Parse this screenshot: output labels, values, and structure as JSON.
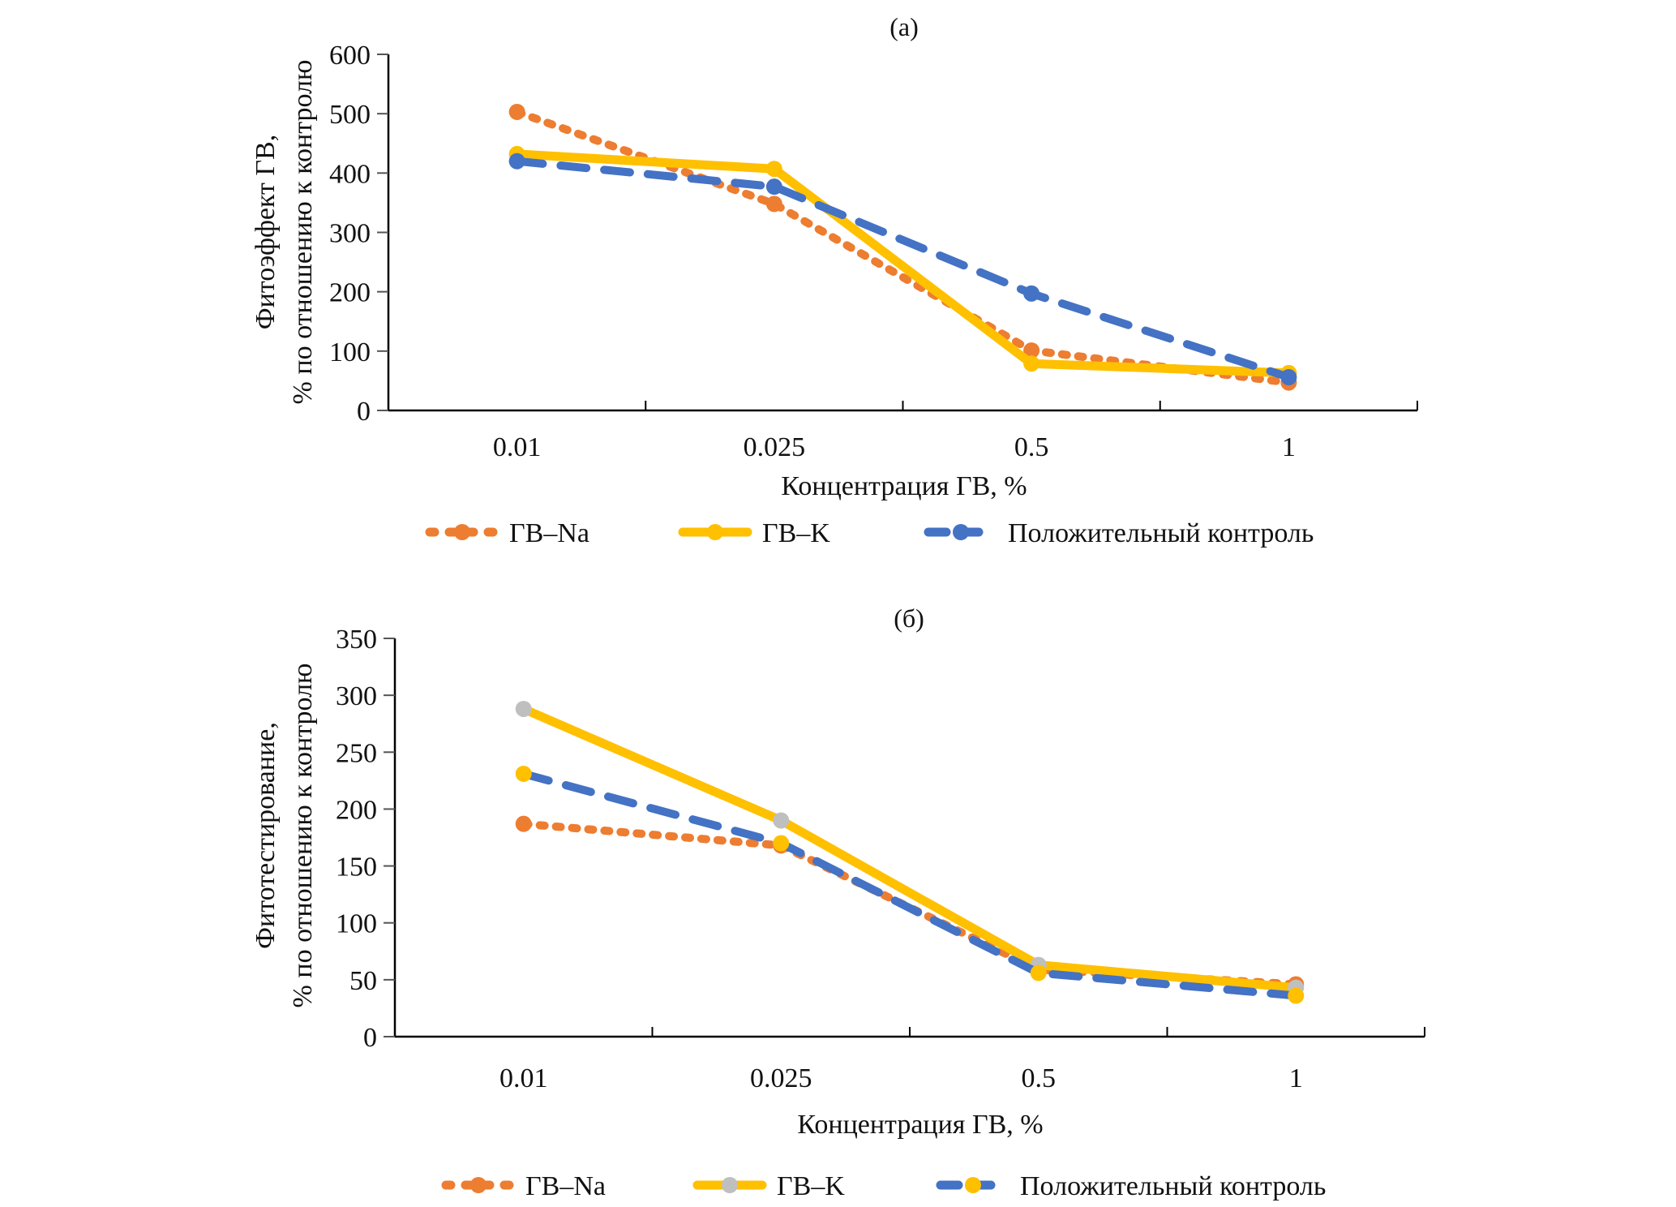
{
  "figure": {
    "colors": {
      "na": "#ED7D31",
      "k": "#FFC000",
      "control": "#4472C4",
      "gray_marker": "#BFBFBF",
      "axis": "#000000"
    }
  },
  "chart_data": [
    {
      "type": "line",
      "title": "(а)",
      "xlabel": "Концентрация ГВ, %",
      "ylabel_line1": "Фитоэффект ГВ,",
      "ylabel_line2": "% по отношению к контролю",
      "categories": [
        "0.01",
        "0.025",
        "0.5",
        "1"
      ],
      "ylim": [
        0,
        600
      ],
      "yticks": [
        0,
        100,
        200,
        300,
        400,
        500,
        600
      ],
      "grid": false,
      "legend_position": "bottom",
      "series": [
        {
          "name": "ГВ–Na",
          "style": "dotted",
          "color_key": "na",
          "marker_color_key": "na",
          "values": [
            503,
            348,
            101,
            47
          ]
        },
        {
          "name": "ГВ–K",
          "style": "solid",
          "color_key": "k",
          "marker_color_key": "k",
          "values": [
            432,
            407,
            79,
            63
          ]
        },
        {
          "name": "Положительный контроль",
          "style": "dashed",
          "color_key": "control",
          "marker_color_key": "control",
          "values": [
            420,
            377,
            197,
            56
          ]
        }
      ]
    },
    {
      "type": "line",
      "title": "(б)",
      "xlabel": "Концентрация ГВ, %",
      "ylabel_line1": "Фитотестирование,",
      "ylabel_line2": "% по отношению к контролю",
      "categories": [
        "0.01",
        "0.025",
        "0.5",
        "1"
      ],
      "ylim": [
        0,
        350
      ],
      "yticks": [
        0,
        50,
        100,
        150,
        200,
        250,
        300,
        350
      ],
      "grid": false,
      "legend_position": "bottom",
      "series": [
        {
          "name": "ГВ–Na",
          "style": "dotted",
          "color_key": "na",
          "marker_color_key": "na",
          "values": [
            187,
            168,
            59,
            46
          ]
        },
        {
          "name": "ГВ–K",
          "style": "solid",
          "color_key": "k",
          "marker_color_key": "gray_marker",
          "values": [
            288,
            190,
            63,
            43
          ]
        },
        {
          "name": "Положительный контроль",
          "style": "dashed",
          "color_key": "control",
          "marker_color_key": "k",
          "values": [
            231,
            170,
            56,
            36
          ]
        }
      ]
    }
  ]
}
